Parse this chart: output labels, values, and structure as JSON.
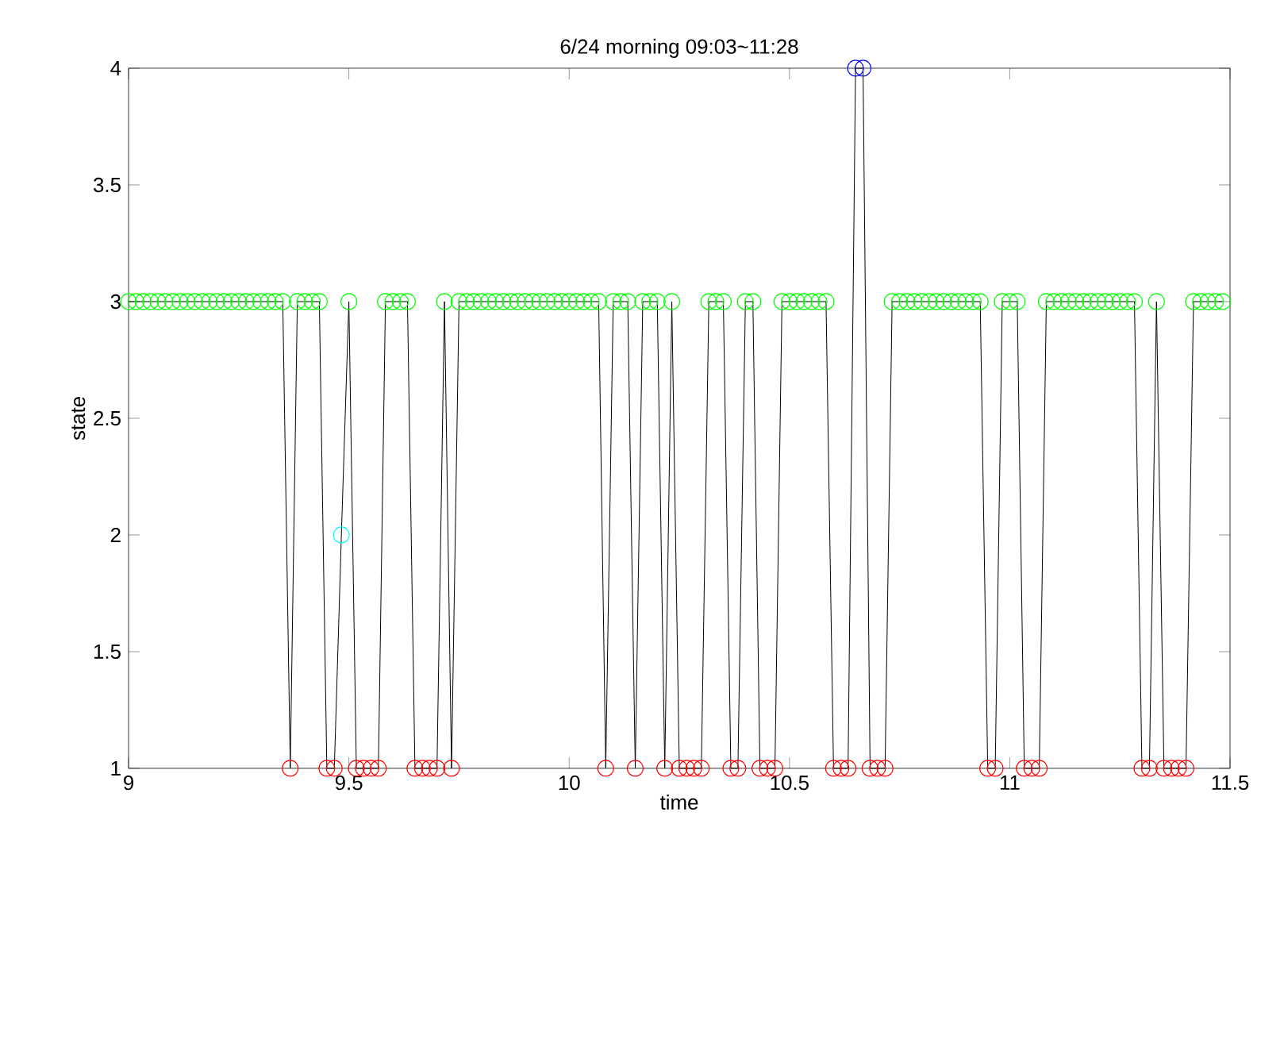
{
  "chart_data": {
    "type": "line",
    "title": "6/24 morning 09:03~11:28",
    "xlabel": "time",
    "ylabel": "state",
    "xlim": [
      9,
      11.5
    ],
    "ylim": [
      1,
      4
    ],
    "xticks": [
      9,
      9.5,
      10,
      10.5,
      11,
      11.5
    ],
    "yticks": [
      1,
      1.5,
      2,
      2.5,
      3,
      3.5,
      4
    ],
    "marker": "circle",
    "line_style": "solid",
    "series": [
      {
        "color": "#000000",
        "x": [
          9.0,
          9.017,
          9.033,
          9.05,
          9.067,
          9.083,
          9.1,
          9.117,
          9.133,
          9.15,
          9.167,
          9.183,
          9.2,
          9.217,
          9.233,
          9.25,
          9.267,
          9.283,
          9.3,
          9.317,
          9.333,
          9.35,
          9.367,
          9.383,
          9.4,
          9.417,
          9.433,
          9.45,
          9.467,
          9.483,
          9.5,
          9.517,
          9.533,
          9.55,
          9.567,
          9.583,
          9.6,
          9.617,
          9.633,
          9.65,
          9.667,
          9.683,
          9.7,
          9.717,
          9.733,
          9.75,
          9.767,
          9.783,
          9.8,
          9.817,
          9.833,
          9.85,
          9.867,
          9.883,
          9.9,
          9.917,
          9.933,
          9.95,
          9.967,
          9.983,
          10.0,
          10.017,
          10.033,
          10.05,
          10.067,
          10.083,
          10.1,
          10.117,
          10.133,
          10.15,
          10.167,
          10.183,
          10.2,
          10.217,
          10.233,
          10.25,
          10.267,
          10.283,
          10.3,
          10.317,
          10.333,
          10.35,
          10.367,
          10.383,
          10.4,
          10.417,
          10.433,
          10.45,
          10.467,
          10.483,
          10.5,
          10.517,
          10.533,
          10.55,
          10.567,
          10.583,
          10.6,
          10.617,
          10.633,
          10.65,
          10.667,
          10.683,
          10.7,
          10.717,
          10.733,
          10.75,
          10.767,
          10.783,
          10.8,
          10.817,
          10.833,
          10.85,
          10.867,
          10.883,
          10.9,
          10.917,
          10.933,
          10.95,
          10.967,
          10.983,
          11.0,
          11.017,
          11.033,
          11.05,
          11.067,
          11.083,
          11.1,
          11.117,
          11.133,
          11.15,
          11.167,
          11.183,
          11.2,
          11.217,
          11.233,
          11.25,
          11.267,
          11.283,
          11.3,
          11.317,
          11.333,
          11.35,
          11.367,
          11.383,
          11.4,
          11.417,
          11.433,
          11.45,
          11.467,
          11.483
        ],
        "values": [
          3,
          3,
          3,
          3,
          3,
          3,
          3,
          3,
          3,
          3,
          3,
          3,
          3,
          3,
          3,
          3,
          3,
          3,
          3,
          3,
          3,
          3,
          1,
          3,
          3,
          3,
          3,
          1,
          1,
          2,
          3,
          1,
          1,
          1,
          1,
          3,
          3,
          3,
          3,
          1,
          1,
          1,
          1,
          3,
          1,
          3,
          3,
          3,
          3,
          3,
          3,
          3,
          3,
          3,
          3,
          3,
          3,
          3,
          3,
          3,
          3,
          3,
          3,
          3,
          3,
          1,
          3,
          3,
          3,
          1,
          3,
          3,
          3,
          1,
          3,
          1,
          1,
          1,
          1,
          3,
          3,
          3,
          1,
          1,
          3,
          3,
          1,
          1,
          1,
          3,
          3,
          3,
          3,
          3,
          3,
          3,
          1,
          1,
          1,
          4,
          4,
          1,
          1,
          1,
          3,
          3,
          3,
          3,
          3,
          3,
          3,
          3,
          3,
          3,
          3,
          3,
          3,
          1,
          1,
          3,
          3,
          3,
          1,
          1,
          1,
          3,
          3,
          3,
          3,
          3,
          3,
          3,
          3,
          3,
          3,
          3,
          3,
          3,
          1,
          1,
          3,
          1,
          1,
          1,
          1,
          3,
          3,
          3,
          3,
          3
        ],
        "colors": [
          "#00ff00",
          "#00ff00",
          "#00ff00",
          "#00ff00",
          "#00ff00",
          "#00ff00",
          "#00ff00",
          "#00ff00",
          "#00ff00",
          "#00ff00",
          "#00ff00",
          "#00ff00",
          "#00ff00",
          "#00ff00",
          "#00ff00",
          "#00ff00",
          "#00ff00",
          "#00ff00",
          "#00ff00",
          "#00ff00",
          "#00ff00",
          "#00ff00",
          "#ff0000",
          "#00ff00",
          "#00ff00",
          "#00ff00",
          "#00ff00",
          "#ff0000",
          "#ff0000",
          "#00ffff",
          "#00ff00",
          "#ff0000",
          "#ff0000",
          "#ff0000",
          "#ff0000",
          "#00ff00",
          "#00ff00",
          "#00ff00",
          "#00ff00",
          "#ff0000",
          "#ff0000",
          "#ff0000",
          "#ff0000",
          "#00ff00",
          "#ff0000",
          "#00ff00",
          "#00ff00",
          "#00ff00",
          "#00ff00",
          "#00ff00",
          "#00ff00",
          "#00ff00",
          "#00ff00",
          "#00ff00",
          "#00ff00",
          "#00ff00",
          "#00ff00",
          "#00ff00",
          "#00ff00",
          "#00ff00",
          "#00ff00",
          "#00ff00",
          "#00ff00",
          "#00ff00",
          "#00ff00",
          "#ff0000",
          "#00ff00",
          "#00ff00",
          "#00ff00",
          "#ff0000",
          "#00ff00",
          "#00ff00",
          "#00ff00",
          "#ff0000",
          "#00ff00",
          "#ff0000",
          "#ff0000",
          "#ff0000",
          "#ff0000",
          "#00ff00",
          "#00ff00",
          "#00ff00",
          "#ff0000",
          "#ff0000",
          "#00ff00",
          "#00ff00",
          "#ff0000",
          "#ff0000",
          "#ff0000",
          "#00ff00",
          "#00ff00",
          "#00ff00",
          "#00ff00",
          "#00ff00",
          "#00ff00",
          "#00ff00",
          "#ff0000",
          "#ff0000",
          "#ff0000",
          "#0000ff",
          "#0000ff",
          "#ff0000",
          "#ff0000",
          "#ff0000",
          "#00ff00",
          "#00ff00",
          "#00ff00",
          "#00ff00",
          "#00ff00",
          "#00ff00",
          "#00ff00",
          "#00ff00",
          "#00ff00",
          "#00ff00",
          "#00ff00",
          "#00ff00",
          "#00ff00",
          "#ff0000",
          "#ff0000",
          "#00ff00",
          "#00ff00",
          "#00ff00",
          "#ff0000",
          "#ff0000",
          "#ff0000",
          "#00ff00",
          "#00ff00",
          "#00ff00",
          "#00ff00",
          "#00ff00",
          "#00ff00",
          "#00ff00",
          "#00ff00",
          "#00ff00",
          "#00ff00",
          "#00ff00",
          "#00ff00",
          "#00ff00",
          "#ff0000",
          "#ff0000",
          "#00ff00",
          "#ff0000",
          "#ff0000",
          "#ff0000",
          "#ff0000",
          "#00ff00",
          "#00ff00",
          "#00ff00",
          "#00ff00",
          "#00ff00"
        ]
      }
    ]
  }
}
